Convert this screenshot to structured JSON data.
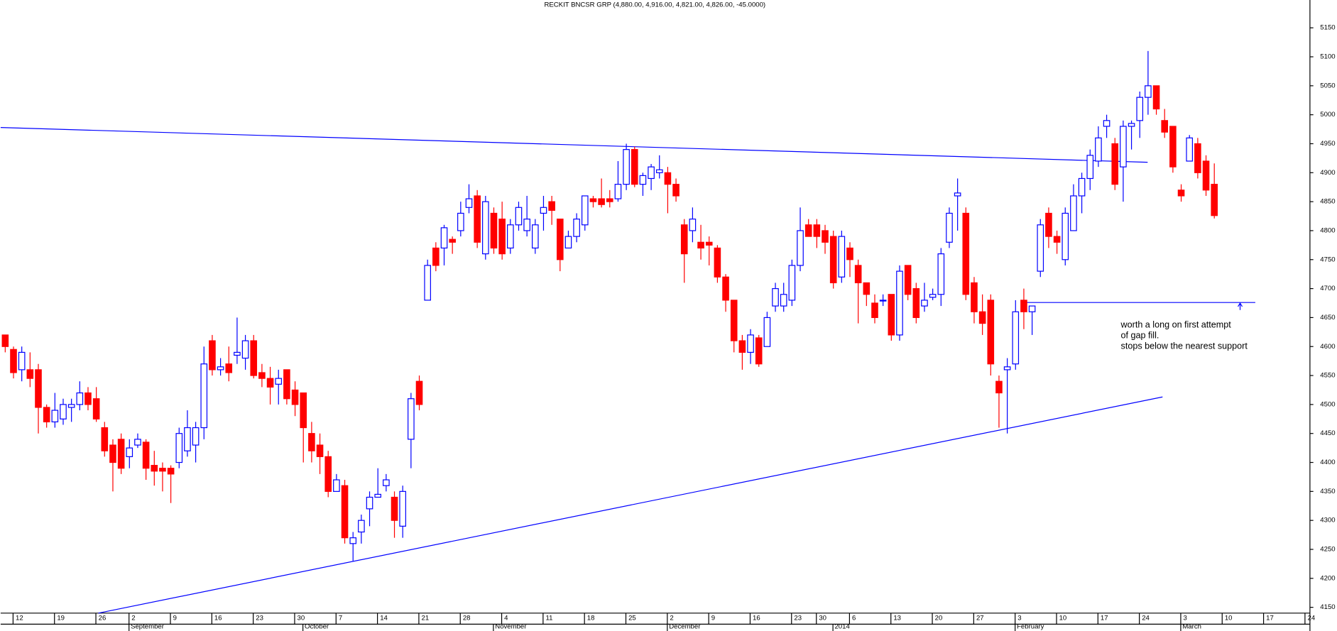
{
  "chart_data": {
    "type": "candlestick",
    "title": "RECKIT BNCSR GRP (4,880.00, 4,916.00, 4,821.00, 4,826.00, -45.0000)",
    "up_color": "#0000ff",
    "down_color": "#ff0000",
    "open": [
      4620,
      4595,
      4560,
      4560,
      4560,
      4495,
      4470,
      4475,
      4495,
      4500,
      4520,
      4510,
      4460,
      4430,
      4440,
      4410,
      4430,
      4435,
      4395,
      4390,
      4390,
      4400,
      4420,
      4430,
      4460,
      4610,
      4560,
      4570,
      4585,
      4580,
      4610,
      4555,
      4545,
      4535,
      4560,
      4525,
      4520,
      4450,
      4430,
      4410,
      4350,
      4360,
      4260,
      4280,
      4320,
      4340,
      4360,
      4340,
      4290,
      4440,
      4540,
      4680,
      4770,
      4770,
      4785,
      4800,
      4840,
      4860,
      4760,
      4830,
      4820,
      4770,
      4810,
      4800,
      4770,
      4830,
      4850,
      4820,
      4770,
      4790,
      4810,
      4855,
      4855,
      4855,
      4855,
      4880,
      4940,
      4880,
      4890,
      4900,
      4900,
      4880,
      4810,
      4800,
      4780,
      4780,
      4770,
      4720,
      4680,
      4610,
      4590,
      4615,
      4600,
      4670,
      4670,
      4680,
      4740,
      4810,
      4810,
      4800,
      4790,
      4720,
      4770,
      4740,
      4710,
      4675,
      4680,
      4690,
      4620,
      4740,
      4700,
      4670,
      4685,
      4690,
      4780,
      4860,
      4830,
      4710,
      4660,
      4680,
      4540,
      4560,
      4570,
      4680,
      4660,
      4730,
      4830,
      4790,
      4750,
      4800,
      4860,
      4890,
      4920,
      4980,
      4950,
      4910,
      4980,
      4990,
      5030,
      5050,
      4990,
      4980,
      4870,
      4920,
      4950,
      4920,
      4880
    ],
    "high": [
      4620,
      4600,
      4600,
      4590,
      4570,
      4500,
      4520,
      4510,
      4510,
      4540,
      4530,
      4530,
      4470,
      4440,
      4450,
      4440,
      4450,
      4440,
      4420,
      4400,
      4395,
      4460,
      4490,
      4470,
      4600,
      4620,
      4580,
      4600,
      4650,
      4620,
      4620,
      4570,
      4565,
      4560,
      4560,
      4540,
      4520,
      4470,
      4450,
      4420,
      4380,
      4370,
      4280,
      4310,
      4350,
      4390,
      4380,
      4350,
      4360,
      4520,
      4550,
      4750,
      4780,
      4810,
      4790,
      4850,
      4880,
      4870,
      4860,
      4840,
      4850,
      4820,
      4850,
      4860,
      4820,
      4860,
      4860,
      4820,
      4800,
      4830,
      4860,
      4860,
      4890,
      4870,
      4920,
      4950,
      4945,
      4900,
      4915,
      4930,
      4910,
      4890,
      4820,
      4840,
      4810,
      4790,
      4775,
      4725,
      4680,
      4620,
      4630,
      4620,
      4660,
      4710,
      4710,
      4750,
      4840,
      4820,
      4820,
      4810,
      4800,
      4800,
      4780,
      4750,
      4710,
      4690,
      4690,
      4690,
      4740,
      4740,
      4710,
      4710,
      4700,
      4770,
      4840,
      4890,
      4840,
      4720,
      4690,
      4690,
      4550,
      4580,
      4680,
      4700,
      4670,
      4820,
      4840,
      4800,
      4840,
      4880,
      4900,
      4940,
      4980,
      5000,
      4960,
      4990,
      4990,
      5040,
      5110,
      5050,
      5010,
      4980,
      4880,
      4965,
      4960,
      4930,
      4916
    ],
    "low": [
      4590,
      4545,
      4540,
      4530,
      4450,
      4460,
      4460,
      4465,
      4470,
      4490,
      4490,
      4470,
      4410,
      4350,
      4380,
      4390,
      4425,
      4370,
      4360,
      4350,
      4330,
      4390,
      4410,
      4400,
      4440,
      4550,
      4550,
      4540,
      4570,
      4560,
      4545,
      4530,
      4500,
      4500,
      4500,
      4480,
      4400,
      4400,
      4380,
      4340,
      4350,
      4260,
      4230,
      4260,
      4290,
      4340,
      4350,
      4270,
      4270,
      4390,
      4490,
      4680,
      4730,
      4740,
      4760,
      4790,
      4830,
      4770,
      4750,
      4760,
      4750,
      4760,
      4800,
      4790,
      4760,
      4800,
      4810,
      4730,
      4770,
      4780,
      4800,
      4840,
      4840,
      4840,
      4850,
      4870,
      4875,
      4860,
      4870,
      4890,
      4830,
      4850,
      4710,
      4780,
      4750,
      4740,
      4710,
      4660,
      4590,
      4560,
      4570,
      4565,
      4600,
      4660,
      4660,
      4670,
      4730,
      4790,
      4770,
      4760,
      4700,
      4710,
      4720,
      4640,
      4670,
      4640,
      4670,
      4610,
      4610,
      4680,
      4640,
      4660,
      4680,
      4670,
      4770,
      4800,
      4680,
      4640,
      4620,
      4550,
      4460,
      4450,
      4560,
      4630,
      4620,
      4720,
      4770,
      4760,
      4740,
      4800,
      4830,
      4870,
      4910,
      4960,
      4870,
      4850,
      4940,
      4960,
      5000,
      5000,
      4960,
      4900,
      4850,
      4920,
      4890,
      4860,
      4821
    ],
    "close": [
      4600,
      4555,
      4590,
      4545,
      4495,
      4470,
      4490,
      4500,
      4500,
      4520,
      4500,
      4475,
      4420,
      4400,
      4390,
      4425,
      4440,
      4390,
      4385,
      4385,
      4380,
      4450,
      4460,
      4460,
      4570,
      4560,
      4565,
      4555,
      4590,
      4610,
      4550,
      4545,
      4530,
      4545,
      4510,
      4500,
      4460,
      4420,
      4410,
      4350,
      4370,
      4270,
      4270,
      4300,
      4340,
      4345,
      4370,
      4300,
      4350,
      4510,
      4500,
      4740,
      4740,
      4805,
      4780,
      4830,
      4855,
      4780,
      4850,
      4770,
      4760,
      4810,
      4840,
      4820,
      4810,
      4840,
      4835,
      4750,
      4790,
      4820,
      4860,
      4850,
      4845,
      4850,
      4880,
      4940,
      4880,
      4895,
      4910,
      4905,
      4880,
      4860,
      4760,
      4820,
      4770,
      4775,
      4720,
      4680,
      4610,
      4590,
      4620,
      4570,
      4650,
      4700,
      4690,
      4740,
      4800,
      4790,
      4790,
      4780,
      4710,
      4790,
      4750,
      4710,
      4690,
      4650,
      4680,
      4620,
      4730,
      4690,
      4650,
      4680,
      4690,
      4760,
      4830,
      4865,
      4690,
      4660,
      4640,
      4570,
      4520,
      4565,
      4660,
      4660,
      4670,
      4810,
      4790,
      4780,
      4830,
      4860,
      4890,
      4930,
      4960,
      4990,
      4880,
      4980,
      4985,
      5030,
      5050,
      5010,
      4970,
      4910,
      4860,
      4960,
      4900,
      4870,
      4826
    ],
    "xlim": [
      -0.5,
      157.6
    ],
    "xticks": [
      {
        "value": 1,
        "label": "12"
      },
      {
        "value": 6,
        "label": "19"
      },
      {
        "value": 11,
        "label": "26"
      },
      {
        "value": 15,
        "label": "2"
      },
      {
        "value": 20,
        "label": "9"
      },
      {
        "value": 25,
        "label": "16"
      },
      {
        "value": 30,
        "label": "23"
      },
      {
        "value": 35,
        "label": "30"
      },
      {
        "value": 40,
        "label": "7"
      },
      {
        "value": 45,
        "label": "14"
      },
      {
        "value": 50,
        "label": "21"
      },
      {
        "value": 55,
        "label": "28"
      },
      {
        "value": 60,
        "label": "4"
      },
      {
        "value": 65,
        "label": "11"
      },
      {
        "value": 70,
        "label": "18"
      },
      {
        "value": 75,
        "label": "25"
      },
      {
        "value": 80,
        "label": "2"
      },
      {
        "value": 85,
        "label": "9"
      },
      {
        "value": 90,
        "label": "16"
      },
      {
        "value": 95,
        "label": "23"
      },
      {
        "value": 98,
        "label": "30"
      },
      {
        "value": 102,
        "label": "6"
      },
      {
        "value": 107,
        "label": "13"
      },
      {
        "value": 112,
        "label": "20"
      },
      {
        "value": 117,
        "label": "27"
      },
      {
        "value": 122,
        "label": "3"
      },
      {
        "value": 127,
        "label": "10"
      },
      {
        "value": 132,
        "label": "17"
      },
      {
        "value": 137,
        "label": "24"
      },
      {
        "value": 142,
        "label": "3"
      },
      {
        "value": 147,
        "label": "10"
      },
      {
        "value": 152,
        "label": "17"
      },
      {
        "value": 157,
        "label": "24"
      }
    ],
    "month_ticks": [
      {
        "value": 15,
        "label": "September"
      },
      {
        "value": 36,
        "label": "October"
      },
      {
        "value": 59,
        "label": "November"
      },
      {
        "value": 80,
        "label": "December"
      },
      {
        "value": 100,
        "label": "2014"
      },
      {
        "value": 122,
        "label": "February"
      },
      {
        "value": 142,
        "label": "March"
      }
    ],
    "ylim": [
      4140,
      5198
    ],
    "yticks": [
      4150,
      4200,
      4250,
      4300,
      4350,
      4400,
      4450,
      4500,
      4550,
      4600,
      4650,
      4700,
      4750,
      4800,
      4850,
      4900,
      4950,
      5000,
      5050,
      5100,
      5150
    ],
    "trendlines": [
      {
        "x": [
          -0.5,
          138
        ],
        "y": [
          4978,
          4918
        ],
        "color": "#0000ff"
      },
      {
        "x": [
          11.3,
          139.8
        ],
        "y": [
          4140,
          4513
        ],
        "color": "#0000ff"
      },
      {
        "x": [
          123.4,
          151
        ],
        "y": [
          4676,
          4676
        ],
        "color": "#0000ff"
      }
    ],
    "annotations": [
      "worth a long on first attempt",
      "of gap fill.",
      "stops below the nearest support"
    ],
    "annotation_color": "#0000ff"
  }
}
